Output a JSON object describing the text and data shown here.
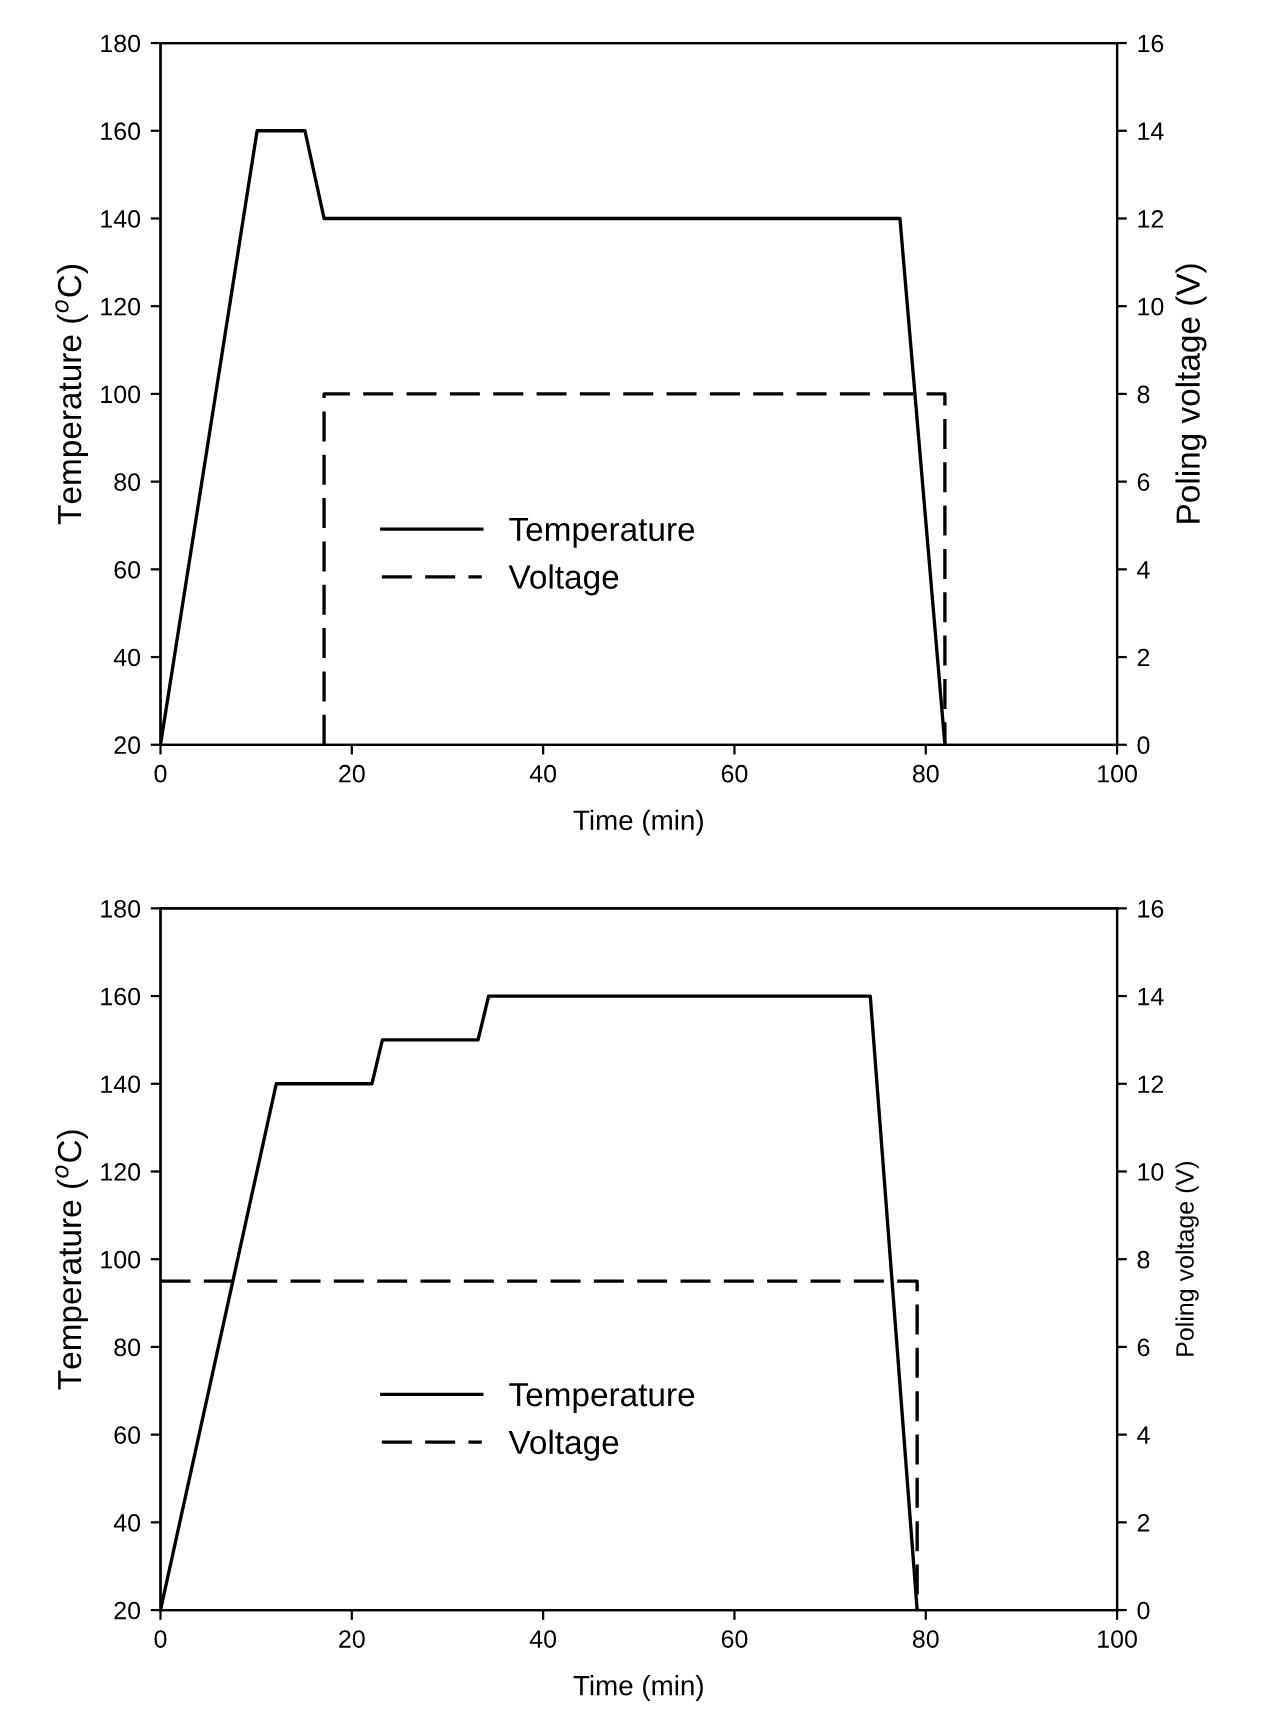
{
  "chart_data": [
    {
      "type": "line",
      "xlabel": "Time (min)",
      "ylabel": "Temperature ($^{o}$C)",
      "y2label": "Poling voltage (V)",
      "xlim": [
        0,
        100
      ],
      "xticks": [
        0,
        20,
        40,
        60,
        80,
        100
      ],
      "ylim": [
        20,
        180
      ],
      "yticks": [
        20,
        40,
        60,
        80,
        100,
        120,
        140,
        160,
        180
      ],
      "y2lim": [
        0,
        16
      ],
      "y2ticks": [
        0,
        2,
        4,
        6,
        8,
        10,
        12,
        14,
        16
      ],
      "grid": false,
      "legend": "lower left",
      "series": [
        {
          "name": "Temperature",
          "color": "#000000",
          "line_style": "solid",
          "x": [
            0,
            10.1,
            15.1,
            17.1,
            77.3,
            82
          ],
          "values": [
            20,
            160,
            160,
            140,
            140,
            20
          ]
        },
        {
          "name": "Voltage",
          "color": "#000000",
          "line_style": "dashed",
          "axis": "y2",
          "x": [
            17.1,
            17.1,
            82,
            82
          ],
          "values": [
            0,
            8,
            8,
            0
          ]
        }
      ]
    },
    {
      "type": "line",
      "xlabel": "Time (min)",
      "ylabel": "Temperature ($^{o}$C)",
      "y2label": "Poling voltage (V)",
      "xlim": [
        0,
        100
      ],
      "xticks": [
        0,
        20,
        40,
        60,
        80,
        100
      ],
      "ylim": [
        20,
        180
      ],
      "yticks": [
        20,
        40,
        60,
        80,
        100,
        120,
        140,
        160,
        180
      ],
      "y2lim": [
        0,
        16
      ],
      "y2ticks": [
        0,
        2,
        4,
        6,
        8,
        10,
        12,
        14,
        16
      ],
      "grid": false,
      "legend": "lower left",
      "series": [
        {
          "name": "Temperature",
          "color": "#000000",
          "line_style": "solid",
          "x": [
            0,
            12.1,
            22.1,
            23.2,
            33.2,
            34.3,
            74.2,
            79.1
          ],
          "values": [
            20,
            140,
            140,
            150,
            150,
            160,
            160,
            20
          ]
        },
        {
          "name": "Voltage",
          "color": "#000000",
          "line_style": "dashed",
          "axis": "y2",
          "x": [
            0,
            79.1,
            79.1
          ],
          "values": [
            7.5,
            7.5,
            0
          ]
        }
      ]
    }
  ]
}
